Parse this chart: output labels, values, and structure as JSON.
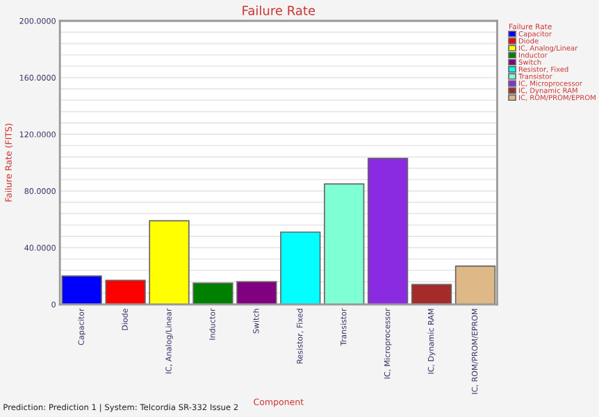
{
  "chart_data": {
    "type": "bar",
    "title": "Failure Rate",
    "xlabel": "Component",
    "ylabel": "Failure Rate (FITS)",
    "legend_title": "Failure Rate",
    "categories": [
      "Capacitor",
      "Diode",
      "IC, Analog/Linear",
      "Inductor",
      "Switch",
      "Resistor, Fixed",
      "Transistor",
      "IC, Microprocessor",
      "IC, Dynamic RAM",
      "IC, ROM/PROM/EPROM"
    ],
    "series": [
      {
        "name": "Capacitor",
        "color": "#0000ff",
        "values": [
          20,
          null,
          null,
          null,
          null,
          null,
          null,
          null,
          null,
          null
        ]
      },
      {
        "name": "Diode",
        "color": "#ff0000",
        "values": [
          null,
          17,
          null,
          null,
          null,
          null,
          null,
          null,
          null,
          null
        ]
      },
      {
        "name": "IC, Analog/Linear",
        "color": "#ffff00",
        "values": [
          null,
          null,
          59,
          null,
          null,
          null,
          null,
          null,
          null,
          null
        ]
      },
      {
        "name": "Inductor",
        "color": "#008000",
        "values": [
          null,
          null,
          null,
          15,
          null,
          null,
          null,
          null,
          null,
          null
        ]
      },
      {
        "name": "Switch",
        "color": "#800080",
        "values": [
          null,
          null,
          null,
          null,
          16,
          null,
          null,
          null,
          null,
          null
        ]
      },
      {
        "name": "Resistor, Fixed",
        "color": "#00ffff",
        "values": [
          null,
          null,
          null,
          null,
          null,
          51,
          null,
          null,
          null,
          null
        ]
      },
      {
        "name": "Transistor",
        "color": "#7fffd4",
        "values": [
          null,
          null,
          null,
          null,
          null,
          null,
          85,
          null,
          null,
          null
        ]
      },
      {
        "name": "IC, Microprocessor",
        "color": "#8a2be2",
        "values": [
          null,
          null,
          null,
          null,
          null,
          null,
          null,
          103,
          null,
          null
        ]
      },
      {
        "name": "IC, Dynamic RAM",
        "color": "#a52a2a",
        "values": [
          null,
          null,
          null,
          null,
          null,
          null,
          null,
          null,
          14,
          null
        ]
      },
      {
        "name": "IC, ROM/PROM/EPROM",
        "color": "#deb887",
        "values": [
          null,
          null,
          null,
          null,
          null,
          null,
          null,
          null,
          null,
          27
        ]
      }
    ],
    "stacked": true,
    "ylim": [
      0,
      200
    ],
    "yticks": [
      0,
      {
        "value": 8,
        "label": null
      },
      {
        "value": 16,
        "label": null
      },
      {
        "value": 24,
        "label": null
      },
      {
        "value": 32,
        "label": null
      },
      {
        "value": 40,
        "label": "40.0000"
      },
      {
        "value": 48,
        "label": null
      },
      {
        "value": 56,
        "label": null
      },
      {
        "value": 64,
        "label": null
      },
      {
        "value": 72,
        "label": null
      },
      {
        "value": 80,
        "label": "80.0000"
      },
      {
        "value": 88,
        "label": null
      },
      {
        "value": 96,
        "label": null
      },
      {
        "value": 104,
        "label": null
      },
      {
        "value": 112,
        "label": null
      },
      {
        "value": 120,
        "label": "120.0000"
      },
      {
        "value": 128,
        "label": null
      },
      {
        "value": 136,
        "label": null
      },
      {
        "value": 144,
        "label": null
      },
      {
        "value": 152,
        "label": null
      },
      {
        "value": 160,
        "label": "160.0000"
      },
      {
        "value": 168,
        "label": null
      },
      {
        "value": 176,
        "label": null
      },
      {
        "value": 184,
        "label": null
      },
      {
        "value": 192,
        "label": null
      },
      {
        "value": 200,
        "label": "200.0000"
      }
    ],
    "grid": "y",
    "legend": "right",
    "annotations": [
      "Prediction: Prediction 1 | System: Telcordia SR-332 Issue 2"
    ]
  }
}
